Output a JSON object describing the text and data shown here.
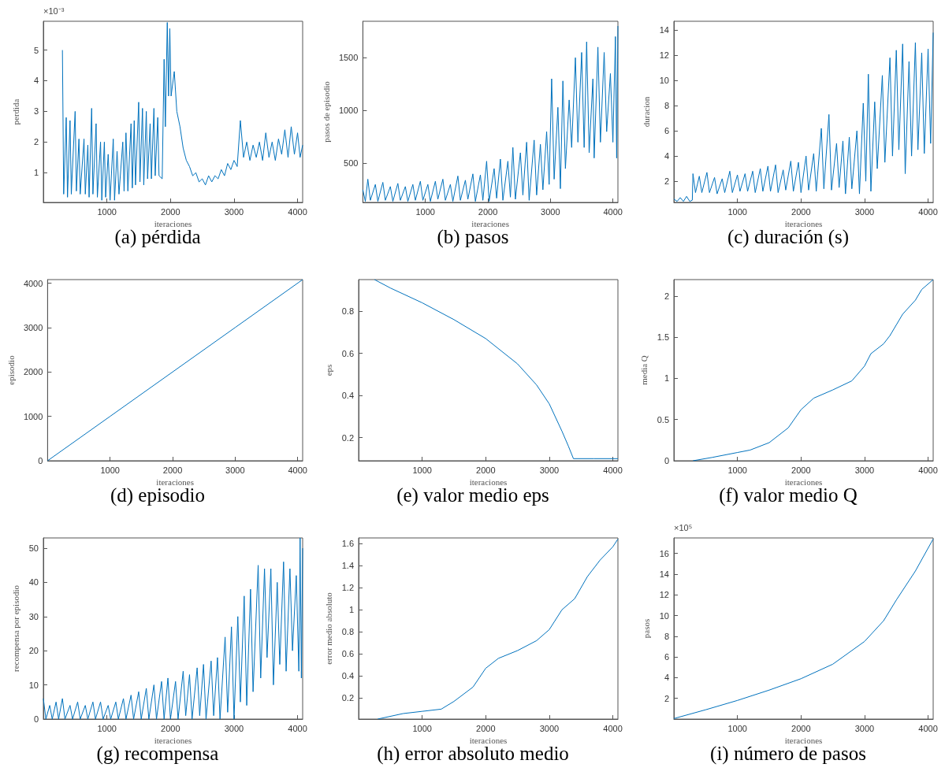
{
  "chart_data": [
    {
      "type": "line",
      "title": "(a) pérdida",
      "xlabel": "iteraciones",
      "ylabel": "perdida",
      "annotations": [
        "×10⁻³"
      ],
      "xlim": [
        0,
        4080
      ],
      "xticks": [
        1000,
        2000,
        3000,
        4000
      ],
      "ylim": [
        0.03,
        5.94
      ],
      "yticks": [
        1,
        2,
        3,
        4,
        5
      ],
      "x": [
        300,
        320,
        360,
        380,
        420,
        440,
        500,
        520,
        560,
        580,
        640,
        660,
        700,
        720,
        760,
        780,
        830,
        850,
        900,
        920,
        960,
        980,
        1020,
        1050,
        1100,
        1120,
        1160,
        1190,
        1250,
        1270,
        1300,
        1330,
        1380,
        1400,
        1430,
        1450,
        1500,
        1520,
        1560,
        1580,
        1620,
        1640,
        1680,
        1700,
        1740,
        1760,
        1800,
        1820,
        1870,
        1900,
        1920,
        1950,
        1970,
        1990,
        2010,
        2060,
        2100,
        2150,
        2200,
        2250,
        2300,
        2350,
        2400,
        2450,
        2500,
        2550,
        2600,
        2650,
        2700,
        2750,
        2800,
        2850,
        2900,
        2950,
        3000,
        3050,
        3100,
        3150,
        3200,
        3250,
        3300,
        3350,
        3400,
        3450,
        3500,
        3550,
        3600,
        3650,
        3700,
        3750,
        3800,
        3850,
        3900,
        3950,
        4000,
        4040,
        4080
      ],
      "series": [
        {
          "color": "#0072bd",
          "values": [
            5.0,
            0.3,
            2.8,
            0.2,
            2.7,
            0.3,
            3.0,
            0.4,
            2.1,
            0.3,
            2.1,
            0.3,
            1.9,
            0.2,
            3.1,
            0.3,
            2.6,
            0.2,
            2.0,
            0.1,
            2.0,
            0.2,
            1.6,
            0.1,
            2.1,
            0.1,
            1.7,
            0.3,
            2.0,
            0.4,
            2.3,
            0.4,
            2.6,
            0.5,
            2.7,
            0.6,
            3.3,
            0.7,
            3.1,
            0.6,
            3.0,
            0.8,
            2.6,
            0.8,
            3.1,
            0.9,
            2.8,
            0.9,
            0.8,
            4.7,
            2.5,
            5.9,
            3.5,
            5.7,
            3.5,
            4.3,
            3.0,
            2.5,
            1.8,
            1.4,
            1.2,
            0.9,
            1.0,
            0.7,
            0.8,
            0.6,
            0.9,
            0.7,
            0.9,
            0.8,
            1.1,
            0.9,
            1.3,
            1.1,
            1.4,
            1.2,
            2.7,
            1.5,
            2.0,
            1.4,
            1.9,
            1.5,
            2.0,
            1.4,
            2.3,
            1.5,
            2.0,
            1.4,
            2.1,
            1.6,
            2.4,
            1.5,
            2.5,
            1.6,
            2.3,
            1.5,
            1.9
          ]
        }
      ]
    },
    {
      "type": "line",
      "title": "(b) pasos",
      "xlabel": "iteraciones",
      "ylabel": "pasos de episodio",
      "xlim": [
        0,
        4080
      ],
      "xticks": [
        1000,
        2000,
        3000,
        4000
      ],
      "ylim": [
        130,
        1845
      ],
      "yticks": [
        500,
        1000,
        1500
      ],
      "x": [
        0,
        40,
        80,
        120,
        200,
        240,
        320,
        360,
        440,
        480,
        560,
        600,
        680,
        720,
        800,
        840,
        920,
        960,
        1040,
        1080,
        1160,
        1200,
        1280,
        1320,
        1400,
        1440,
        1520,
        1560,
        1640,
        1680,
        1760,
        1800,
        1880,
        1920,
        1980,
        2020,
        2100,
        2140,
        2200,
        2240,
        2320,
        2360,
        2400,
        2440,
        2520,
        2560,
        2620,
        2660,
        2740,
        2780,
        2840,
        2880,
        2940,
        2980,
        3020,
        3060,
        3120,
        3160,
        3200,
        3240,
        3300,
        3340,
        3400,
        3440,
        3500,
        3540,
        3580,
        3620,
        3680,
        3700,
        3760,
        3800,
        3860,
        3900,
        3960,
        4000,
        4040,
        4060,
        4080
      ],
      "series": [
        {
          "color": "#0072bd",
          "values": [
            250,
            140,
            350,
            150,
            300,
            140,
            320,
            150,
            280,
            140,
            310,
            150,
            280,
            140,
            300,
            150,
            330,
            150,
            300,
            140,
            330,
            160,
            350,
            150,
            300,
            140,
            380,
            150,
            340,
            160,
            400,
            140,
            390,
            150,
            520,
            140,
            450,
            170,
            540,
            150,
            520,
            180,
            650,
            160,
            600,
            200,
            700,
            150,
            720,
            200,
            680,
            250,
            800,
            300,
            1300,
            350,
            1030,
            260,
            1280,
            450,
            1100,
            650,
            1500,
            700,
            1550,
            650,
            1650,
            600,
            1300,
            550,
            1600,
            700,
            1550,
            800,
            1350,
            700,
            1700,
            550,
            1800
          ]
        }
      ]
    },
    {
      "type": "line",
      "title": "(c) duración (s)",
      "xlabel": "iteraciones",
      "ylabel": "duracion",
      "xlim": [
        0,
        4080
      ],
      "xticks": [
        1000,
        2000,
        3000,
        4000
      ],
      "ylim": [
        0.32,
        14.7
      ],
      "yticks": [
        2,
        4,
        6,
        8,
        10,
        12,
        14
      ],
      "x": [
        0,
        50,
        100,
        150,
        200,
        250,
        290,
        300,
        340,
        400,
        440,
        520,
        560,
        640,
        680,
        760,
        800,
        880,
        920,
        1000,
        1040,
        1120,
        1160,
        1240,
        1280,
        1360,
        1400,
        1480,
        1520,
        1600,
        1640,
        1720,
        1760,
        1840,
        1880,
        1960,
        2000,
        2080,
        2120,
        2200,
        2240,
        2320,
        2360,
        2440,
        2480,
        2560,
        2600,
        2660,
        2700,
        2760,
        2800,
        2880,
        2920,
        2980,
        3020,
        3060,
        3100,
        3160,
        3200,
        3280,
        3320,
        3400,
        3440,
        3500,
        3540,
        3600,
        3640,
        3700,
        3740,
        3800,
        3840,
        3900,
        3940,
        4000,
        4040,
        4080
      ],
      "series": [
        {
          "color": "#0072bd",
          "values": [
            0.6,
            0.4,
            0.7,
            0.4,
            0.8,
            0.4,
            0.5,
            2.6,
            1.1,
            2.4,
            1.1,
            2.7,
            1.1,
            2.3,
            1.0,
            2.2,
            1.1,
            2.8,
            1.1,
            2.5,
            1.2,
            2.6,
            1.2,
            2.8,
            1.1,
            3.0,
            1.2,
            3.2,
            1.2,
            3.3,
            1.1,
            2.9,
            1.3,
            3.6,
            1.2,
            3.5,
            1.1,
            4.0,
            1.3,
            4.2,
            1.2,
            6.2,
            1.4,
            7.3,
            1.3,
            5.0,
            1.5,
            5.2,
            1.0,
            5.5,
            1.4,
            6.0,
            1.0,
            8.2,
            2.0,
            10.5,
            1.2,
            8.3,
            3.0,
            10.4,
            3.5,
            11.8,
            4.0,
            12.4,
            4.5,
            12.9,
            2.6,
            11.5,
            4.0,
            13.0,
            4.5,
            12.2,
            4.2,
            12.5,
            5.0,
            13.8
          ]
        }
      ]
    },
    {
      "type": "line",
      "title": "(d) episodio",
      "xlabel": "iteraciones",
      "ylabel": "episodio",
      "xlim": [
        0,
        4080
      ],
      "xticks": [
        1000,
        2000,
        3000,
        4000
      ],
      "ylim": [
        0,
        4080
      ],
      "yticks": [
        0,
        1000,
        2000,
        3000,
        4000
      ],
      "x": [
        0,
        1000,
        2000,
        3000,
        4080
      ],
      "series": [
        {
          "color": "#0072bd",
          "values": [
            0,
            1000,
            2000,
            3000,
            4080
          ]
        }
      ]
    },
    {
      "type": "line",
      "title": "(e) valor medio eps",
      "xlabel": "iteraciones",
      "ylabel": "eps",
      "xlim": [
        0,
        4080
      ],
      "xticks": [
        1000,
        2000,
        3000,
        4000
      ],
      "ylim": [
        0.09,
        0.95
      ],
      "yticks": [
        0.2,
        0.4,
        0.6,
        0.8
      ],
      "x": [
        250,
        500,
        1000,
        1500,
        2000,
        2500,
        2800,
        3000,
        3200,
        3300,
        3380,
        3700,
        4080
      ],
      "series": [
        {
          "color": "#0072bd",
          "values": [
            0.95,
            0.91,
            0.84,
            0.76,
            0.67,
            0.55,
            0.45,
            0.36,
            0.23,
            0.16,
            0.1,
            0.1,
            0.1
          ]
        }
      ]
    },
    {
      "type": "line",
      "title": "(f) valor medio Q",
      "xlabel": "iteraciones",
      "ylabel": "media Q",
      "xlim": [
        0,
        4080
      ],
      "xticks": [
        1000,
        2000,
        3000,
        4000
      ],
      "ylim": [
        0,
        2.2
      ],
      "yticks": [
        0,
        0.5,
        1,
        1.5,
        2
      ],
      "x": [
        300,
        600,
        1000,
        1200,
        1500,
        1800,
        2000,
        2200,
        2500,
        2800,
        3000,
        3100,
        3300,
        3400,
        3600,
        3800,
        3900,
        4080
      ],
      "series": [
        {
          "color": "#0072bd",
          "values": [
            0,
            0.04,
            0.1,
            0.13,
            0.22,
            0.4,
            0.62,
            0.76,
            0.86,
            0.97,
            1.15,
            1.3,
            1.42,
            1.52,
            1.78,
            1.95,
            2.08,
            2.2
          ]
        }
      ]
    },
    {
      "type": "line",
      "title": "(g) recompensa",
      "xlabel": "iteraciones",
      "ylabel": "recompensa por episodio",
      "xlim": [
        0,
        4080
      ],
      "xticks": [
        1000,
        2000,
        3000,
        4000
      ],
      "ylim": [
        0,
        53
      ],
      "yticks": [
        0,
        10,
        20,
        30,
        40,
        50
      ],
      "x": [
        0,
        40,
        100,
        140,
        200,
        240,
        300,
        340,
        420,
        460,
        540,
        580,
        660,
        700,
        780,
        820,
        900,
        940,
        1020,
        1060,
        1140,
        1180,
        1260,
        1300,
        1380,
        1420,
        1500,
        1540,
        1620,
        1660,
        1740,
        1780,
        1860,
        1900,
        1960,
        2000,
        2080,
        2120,
        2200,
        2240,
        2300,
        2340,
        2420,
        2460,
        2520,
        2560,
        2640,
        2680,
        2740,
        2780,
        2860,
        2900,
        2960,
        3000,
        3060,
        3100,
        3160,
        3200,
        3260,
        3300,
        3380,
        3420,
        3480,
        3520,
        3580,
        3620,
        3680,
        3720,
        3780,
        3820,
        3880,
        3920,
        3980,
        4020,
        4040,
        4060,
        4080
      ],
      "series": [
        {
          "color": "#0072bd",
          "values": [
            6,
            0,
            4,
            0,
            5,
            0,
            6,
            0,
            4,
            0,
            5,
            0,
            4,
            0,
            5,
            0,
            5,
            0,
            4,
            0,
            5,
            0,
            6,
            0,
            7,
            0,
            8,
            0,
            9,
            0,
            10,
            0,
            11,
            0,
            12,
            0,
            11,
            0,
            14,
            1,
            13,
            0,
            15,
            1,
            16,
            0,
            17,
            1,
            18,
            0,
            24,
            2,
            27,
            0,
            30,
            5,
            36,
            4,
            38,
            8,
            45,
            12,
            44,
            18,
            44,
            10,
            40,
            16,
            46,
            14,
            44,
            20,
            42,
            14,
            53,
            12,
            50
          ]
        }
      ]
    },
    {
      "type": "line",
      "title": "(h) error absoluto medio",
      "xlabel": "iteraciones",
      "ylabel": "error medio absoluto",
      "xlim": [
        0,
        4080
      ],
      "xticks": [
        1000,
        2000,
        3000,
        4000
      ],
      "ylim": [
        0.01,
        1.65
      ],
      "yticks": [
        0.2,
        0.4,
        0.6,
        0.8,
        1,
        1.2,
        1.4,
        1.6
      ],
      "x": [
        300,
        700,
        1000,
        1300,
        1500,
        1800,
        2000,
        2200,
        2500,
        2800,
        3000,
        3200,
        3400,
        3600,
        3800,
        4000,
        4080
      ],
      "series": [
        {
          "color": "#0072bd",
          "values": [
            0.01,
            0.06,
            0.08,
            0.1,
            0.17,
            0.3,
            0.47,
            0.56,
            0.63,
            0.72,
            0.82,
            1.0,
            1.1,
            1.3,
            1.45,
            1.57,
            1.64
          ]
        }
      ]
    },
    {
      "type": "line",
      "title": "(i) número de pasos",
      "xlabel": "iteraciones",
      "ylabel": "pasos",
      "annotations": [
        "×10⁵"
      ],
      "xlim": [
        0,
        4080
      ],
      "xticks": [
        1000,
        2000,
        3000,
        4000
      ],
      "ylim": [
        0,
        17.5
      ],
      "yticks": [
        2,
        4,
        6,
        8,
        10,
        12,
        14,
        16
      ],
      "x": [
        0,
        500,
        1000,
        1500,
        2000,
        2500,
        3000,
        3300,
        3500,
        3800,
        4080
      ],
      "series": [
        {
          "color": "#0072bd",
          "values": [
            0.05,
            0.9,
            1.8,
            2.8,
            3.9,
            5.3,
            7.5,
            9.5,
            11.5,
            14.3,
            17.4
          ]
        }
      ]
    }
  ]
}
